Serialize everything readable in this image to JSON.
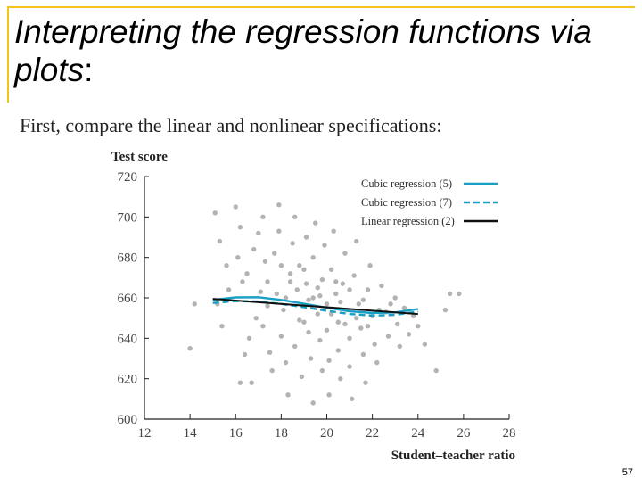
{
  "slide": {
    "title_main": "Interpreting the regression functions via plots",
    "title_colon": ":",
    "subtitle": "First, compare the linear and nonlinear specifications:",
    "page_number": "57",
    "accent_color": "#f0c419"
  },
  "chart_data": {
    "type": "scatter",
    "ylabel": "Test score",
    "xlabel": "Student–teacher ratio",
    "xlim": [
      12,
      28
    ],
    "ylim": [
      600,
      720
    ],
    "xticks": [
      12,
      14,
      16,
      18,
      20,
      22,
      24,
      26,
      28
    ],
    "yticks": [
      600,
      620,
      640,
      660,
      680,
      700,
      720
    ],
    "grid": false,
    "legend_position": "top-right",
    "points": [
      [
        14.0,
        635
      ],
      [
        14.2,
        657
      ],
      [
        15.1,
        702
      ],
      [
        15.3,
        688
      ],
      [
        15.6,
        676
      ],
      [
        15.2,
        657
      ],
      [
        15.4,
        646
      ],
      [
        15.7,
        664
      ],
      [
        16.0,
        705
      ],
      [
        16.2,
        695
      ],
      [
        16.1,
        680
      ],
      [
        16.3,
        668
      ],
      [
        16.5,
        672
      ],
      [
        16.8,
        684
      ],
      [
        16.9,
        650
      ],
      [
        16.6,
        640
      ],
      [
        16.4,
        632
      ],
      [
        16.2,
        618
      ],
      [
        16.7,
        618
      ],
      [
        17.0,
        692
      ],
      [
        17.2,
        700
      ],
      [
        17.3,
        678
      ],
      [
        17.1,
        663
      ],
      [
        17.4,
        656
      ],
      [
        17.2,
        646
      ],
      [
        17.5,
        633
      ],
      [
        17.6,
        624
      ],
      [
        17.8,
        662
      ],
      [
        17.7,
        682
      ],
      [
        17.9,
        693
      ],
      [
        17.9,
        706
      ],
      [
        18.0,
        676
      ],
      [
        18.1,
        654
      ],
      [
        18.0,
        641
      ],
      [
        18.2,
        628
      ],
      [
        18.3,
        612
      ],
      [
        18.4,
        668
      ],
      [
        18.5,
        687
      ],
      [
        18.6,
        700
      ],
      [
        18.7,
        664
      ],
      [
        18.8,
        649
      ],
      [
        18.6,
        636
      ],
      [
        18.9,
        621
      ],
      [
        19.0,
        674
      ],
      [
        19.1,
        690
      ],
      [
        19.2,
        659
      ],
      [
        19.2,
        643
      ],
      [
        19.3,
        630
      ],
      [
        19.4,
        608
      ],
      [
        19.4,
        680
      ],
      [
        19.5,
        697
      ],
      [
        19.6,
        665
      ],
      [
        19.6,
        652
      ],
      [
        19.7,
        639
      ],
      [
        19.8,
        624
      ],
      [
        19.8,
        669
      ],
      [
        19.9,
        686
      ],
      [
        20.0,
        657
      ],
      [
        20.0,
        644
      ],
      [
        20.1,
        629
      ],
      [
        20.1,
        612
      ],
      [
        20.2,
        674
      ],
      [
        20.3,
        693
      ],
      [
        20.4,
        662
      ],
      [
        20.5,
        648
      ],
      [
        20.5,
        634
      ],
      [
        20.6,
        620
      ],
      [
        20.7,
        667
      ],
      [
        20.8,
        682
      ],
      [
        20.9,
        654
      ],
      [
        21.0,
        640
      ],
      [
        21.0,
        626
      ],
      [
        21.1,
        610
      ],
      [
        21.2,
        671
      ],
      [
        21.3,
        688
      ],
      [
        21.4,
        657
      ],
      [
        21.5,
        645
      ],
      [
        21.6,
        632
      ],
      [
        21.7,
        618
      ],
      [
        21.8,
        664
      ],
      [
        21.9,
        676
      ],
      [
        22.0,
        651
      ],
      [
        22.1,
        637
      ],
      [
        22.2,
        628
      ],
      [
        22.4,
        666
      ],
      [
        22.6,
        653
      ],
      [
        22.7,
        641
      ],
      [
        23.0,
        660
      ],
      [
        23.1,
        647
      ],
      [
        23.2,
        636
      ],
      [
        23.4,
        655
      ],
      [
        23.6,
        642
      ],
      [
        23.8,
        651
      ],
      [
        24.0,
        646
      ],
      [
        24.3,
        637
      ],
      [
        24.8,
        624
      ],
      [
        25.2,
        654
      ],
      [
        25.4,
        662
      ],
      [
        25.8,
        662
      ],
      [
        17.4,
        668
      ],
      [
        18.4,
        672
      ],
      [
        19.1,
        667
      ],
      [
        19.7,
        661
      ],
      [
        20.4,
        668
      ],
      [
        21.0,
        664
      ],
      [
        21.6,
        659
      ],
      [
        22.3,
        654
      ],
      [
        18.8,
        676
      ],
      [
        19.4,
        660
      ],
      [
        20.2,
        652
      ],
      [
        20.8,
        647
      ],
      [
        21.3,
        650
      ],
      [
        19.0,
        648
      ],
      [
        18.2,
        660
      ],
      [
        20.6,
        658
      ],
      [
        21.8,
        646
      ],
      [
        22.8,
        657
      ]
    ],
    "series": [
      {
        "name": "Cubic regression (5)",
        "style": "solid",
        "color": "#1a9fc4",
        "x": [
          15,
          16,
          17,
          18,
          19,
          20,
          21,
          22,
          23,
          24
        ],
        "y": [
          659.0,
          660.2,
          660.3,
          659.0,
          657.1,
          655.1,
          653.4,
          652.5,
          652.8,
          654.5
        ]
      },
      {
        "name": "Cubic regression (7)",
        "style": "dashed",
        "color": "#1a9fc4",
        "x": [
          15,
          16,
          17,
          18,
          19,
          20,
          21,
          22,
          23,
          24
        ],
        "y": [
          657.5,
          658.4,
          658.2,
          657.0,
          655.4,
          653.6,
          652.0,
          651.2,
          651.6,
          653.2
        ]
      },
      {
        "name": "Linear regression (2)",
        "style": "solid",
        "color": "#111111",
        "x": [
          15,
          24
        ],
        "y": [
          659.5,
          652.0
        ]
      }
    ],
    "point_color": "#b3b3b3"
  }
}
